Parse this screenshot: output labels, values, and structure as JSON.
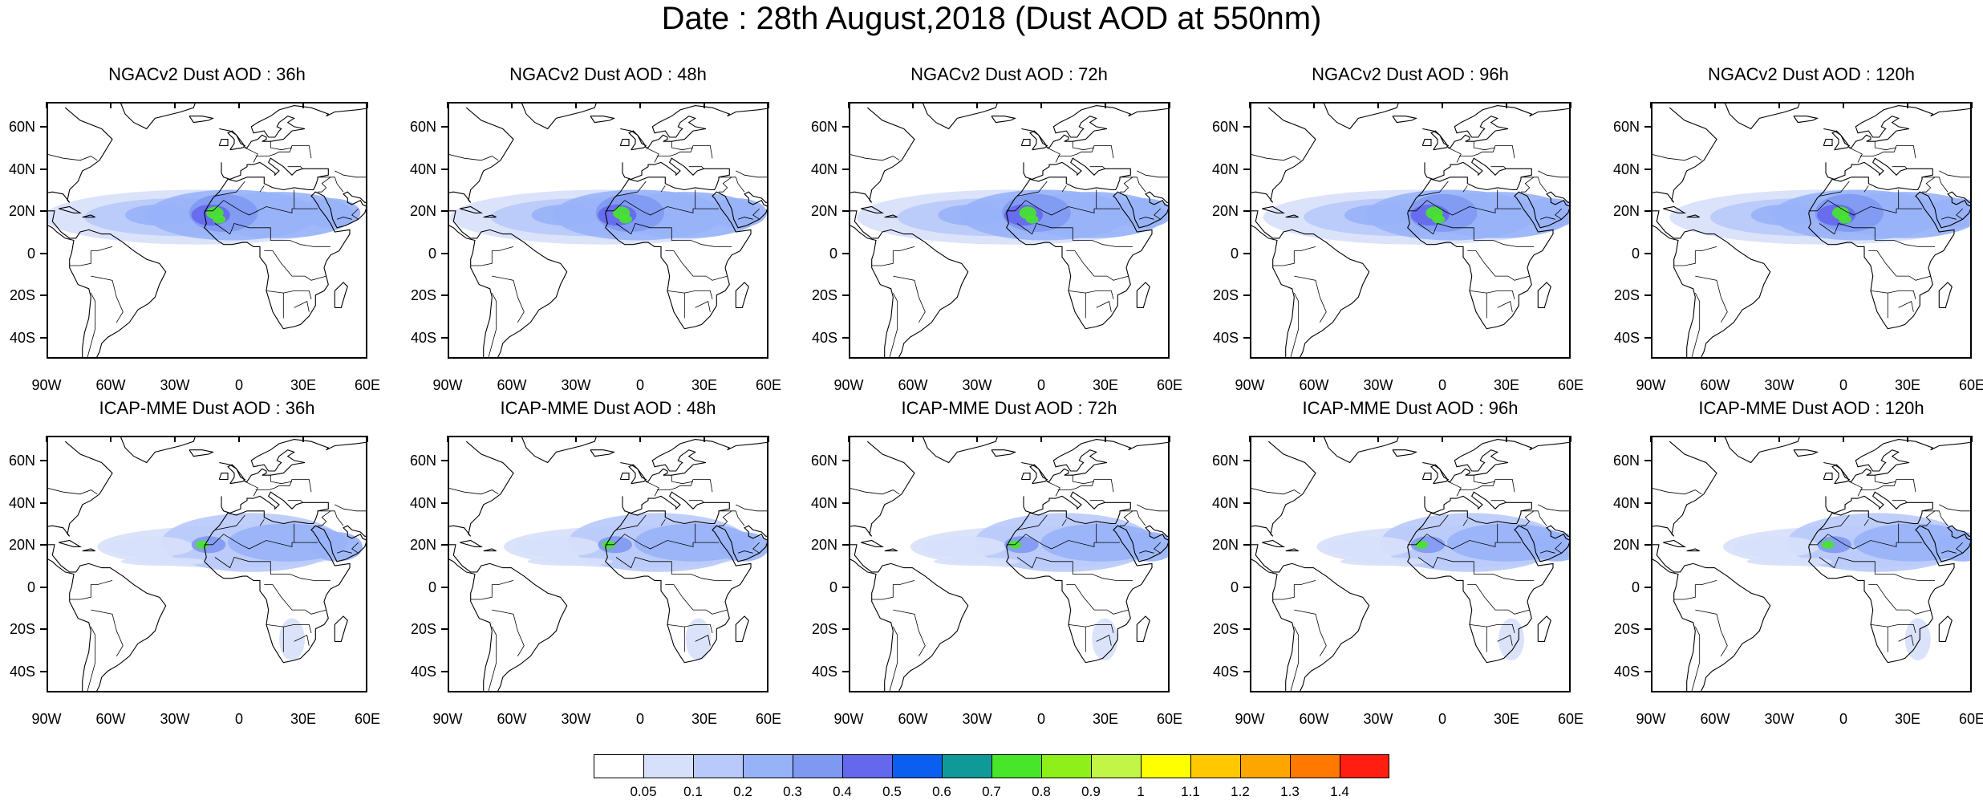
{
  "title": "Date : 28th August,2018 (Dust AOD at 550nm)",
  "lat_labels": [
    "60N",
    "40N",
    "20N",
    "0",
    "20S",
    "40S"
  ],
  "lat_values": [
    60,
    40,
    20,
    0,
    -20,
    -40
  ],
  "lon_labels": [
    "90W",
    "60W",
    "30W",
    "0",
    "30E",
    "60E"
  ],
  "lon_values": [
    -90,
    -60,
    -30,
    0,
    30,
    60
  ],
  "map_extent": {
    "lon": [
      -90,
      60
    ],
    "lat": [
      -50,
      72
    ]
  },
  "panels": [
    {
      "title": "NGACv2 Dust AOD : 36h",
      "model": "NGACv2",
      "lead": "36h"
    },
    {
      "title": "NGACv2 Dust AOD : 48h",
      "model": "NGACv2",
      "lead": "48h"
    },
    {
      "title": "NGACv2 Dust AOD : 72h",
      "model": "NGACv2",
      "lead": "72h"
    },
    {
      "title": "NGACv2 Dust AOD : 96h",
      "model": "NGACv2",
      "lead": "96h"
    },
    {
      "title": "NGACv2 Dust AOD : 120h",
      "model": "NGACv2",
      "lead": "120h"
    },
    {
      "title": "ICAP-MME Dust AOD : 36h",
      "model": "ICAP-MME",
      "lead": "36h"
    },
    {
      "title": "ICAP-MME Dust AOD : 48h",
      "model": "ICAP-MME",
      "lead": "48h"
    },
    {
      "title": "ICAP-MME Dust AOD : 72h",
      "model": "ICAP-MME",
      "lead": "72h"
    },
    {
      "title": "ICAP-MME Dust AOD : 96h",
      "model": "ICAP-MME",
      "lead": "96h"
    },
    {
      "title": "ICAP-MME Dust AOD : 120h",
      "model": "ICAP-MME",
      "lead": "120h"
    }
  ],
  "colorbar": {
    "labels": [
      "0.05",
      "0.1",
      "0.2",
      "0.3",
      "0.4",
      "0.5",
      "0.6",
      "0.7",
      "0.8",
      "0.9",
      "1",
      "1.1",
      "1.2",
      "1.3",
      "1.4"
    ],
    "colors": [
      "#ffffff",
      "#d7e0fb",
      "#b8c9fa",
      "#98b2f8",
      "#7f98f2",
      "#6468ec",
      "#0a5ff0",
      "#0f9a99",
      "#48e62a",
      "#8ef018",
      "#c3f546",
      "#ffff00",
      "#ffc800",
      "#ffa500",
      "#ff7800",
      "#ff1e0f"
    ]
  }
}
